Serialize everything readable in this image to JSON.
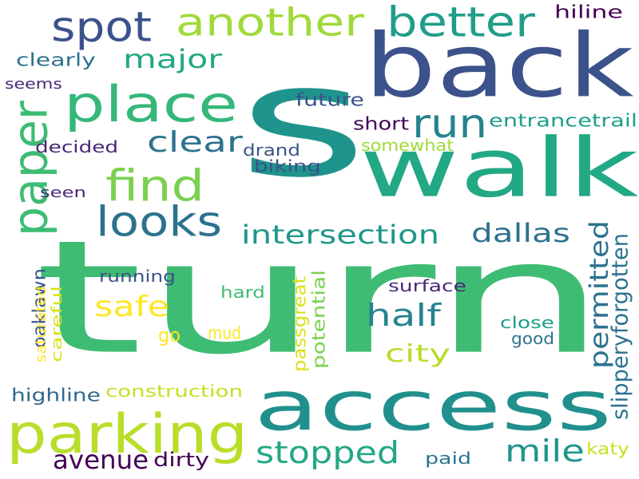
{
  "palette": {
    "dark_purple": "#440154",
    "indigo": "#3b528b",
    "blue": "#31688e",
    "teal": "#21918c",
    "sea": "#1f9e89",
    "green": "#3dbc74",
    "lime": "#a0da39",
    "yellow_green": "#c8e020",
    "yellow": "#fde725"
  },
  "words": [
    {
      "id": "s",
      "text": "s",
      "color": "#1f948c",
      "vertical": false
    },
    {
      "id": "turn",
      "text": "turn",
      "color": "#3fbc73",
      "vertical": false
    },
    {
      "id": "back",
      "text": "back",
      "color": "#3b528b",
      "vertical": false
    },
    {
      "id": "walk",
      "text": "walk",
      "color": "#22a884",
      "vertical": false
    },
    {
      "id": "access",
      "text": "access",
      "color": "#21908d",
      "vertical": false
    },
    {
      "id": "parking",
      "text": "parking",
      "color": "#b8de29",
      "vertical": false
    },
    {
      "id": "place",
      "text": "place",
      "color": "#35b779",
      "vertical": false
    },
    {
      "id": "spot",
      "text": "spot",
      "color": "#3b528b",
      "vertical": false
    },
    {
      "id": "another",
      "text": "another",
      "color": "#a0da39",
      "vertical": false
    },
    {
      "id": "better",
      "text": "better",
      "color": "#1f9e89",
      "vertical": false
    },
    {
      "id": "paper",
      "text": "paper",
      "color": "#3dbc74",
      "vertical": true
    },
    {
      "id": "find",
      "text": "find",
      "color": "#7ad151",
      "vertical": false
    },
    {
      "id": "looks",
      "text": "looks",
      "color": "#2c728e",
      "vertical": false
    },
    {
      "id": "run",
      "text": "run",
      "color": "#25838e",
      "vertical": false
    },
    {
      "id": "major",
      "text": "major",
      "color": "#22a884",
      "vertical": false
    },
    {
      "id": "clear",
      "text": "clear",
      "color": "#2c728e",
      "vertical": false
    },
    {
      "id": "half",
      "text": "half",
      "color": "#25838e",
      "vertical": false
    },
    {
      "id": "safe",
      "text": "safe",
      "color": "#fde725",
      "vertical": false
    },
    {
      "id": "intersection",
      "text": "intersection",
      "color": "#1f968b",
      "vertical": false
    },
    {
      "id": "dallas",
      "text": "dallas",
      "color": "#2c728e",
      "vertical": false
    },
    {
      "id": "permitted",
      "text": "permitted",
      "color": "#2c728e",
      "vertical": true
    },
    {
      "id": "stopped",
      "text": "stopped",
      "color": "#22a884",
      "vertical": false
    },
    {
      "id": "mile",
      "text": "mile",
      "color": "#1f968b",
      "vertical": false
    },
    {
      "id": "city",
      "text": "city",
      "color": "#b8de29",
      "vertical": false
    },
    {
      "id": "avenue",
      "text": "avenue",
      "color": "#440154",
      "vertical": false
    },
    {
      "id": "oaklawn",
      "text": "oaklawn",
      "color": "#3b528b",
      "vertical": true
    },
    {
      "id": "slipperyforgotten",
      "text": "slipperyforgotten",
      "color": "#2c728e",
      "vertical": true
    },
    {
      "id": "hiline",
      "text": "hiline",
      "color": "#440154",
      "vertical": false
    },
    {
      "id": "clearly",
      "text": "clearly",
      "color": "#2c728e",
      "vertical": false
    },
    {
      "id": "seems",
      "text": "seems",
      "color": "#482878",
      "vertical": false
    },
    {
      "id": "future",
      "text": "future",
      "color": "#3b528b",
      "vertical": false
    },
    {
      "id": "short",
      "text": "short",
      "color": "#440154",
      "vertical": false
    },
    {
      "id": "entrancetrail",
      "text": "entrancetrail",
      "color": "#1f9e89",
      "vertical": false
    },
    {
      "id": "decided",
      "text": "decided",
      "color": "#482878",
      "vertical": false
    },
    {
      "id": "drand",
      "text": "drand",
      "color": "#3b528b",
      "vertical": false
    },
    {
      "id": "somewhat",
      "text": "somewhat",
      "color": "#a0da39",
      "vertical": false
    },
    {
      "id": "biking",
      "text": "biking",
      "color": "#3b528b",
      "vertical": false
    },
    {
      "id": "seen",
      "text": "seen",
      "color": "#482878",
      "vertical": false
    },
    {
      "id": "running",
      "text": "running",
      "color": "#3b528b",
      "vertical": false
    },
    {
      "id": "hard",
      "text": "hard",
      "color": "#3dbc74",
      "vertical": false
    },
    {
      "id": "surface",
      "text": "surface",
      "color": "#482878",
      "vertical": false
    },
    {
      "id": "saturated",
      "text": "saturated",
      "color": "#fde725",
      "vertical": true
    },
    {
      "id": "careful",
      "text": "careful",
      "color": "#d8e219",
      "vertical": true
    },
    {
      "id": "passgreat",
      "text": "passgreat",
      "color": "#d8e219",
      "vertical": true
    },
    {
      "id": "potential",
      "text": "potential",
      "color": "#7ad151",
      "vertical": true
    },
    {
      "id": "go",
      "text": "go",
      "color": "#fde725",
      "vertical": false
    },
    {
      "id": "mud",
      "text": "mud",
      "color": "#fde725",
      "vertical": false
    },
    {
      "id": "close",
      "text": "close",
      "color": "#1f9e89",
      "vertical": false
    },
    {
      "id": "good",
      "text": "good",
      "color": "#2c728e",
      "vertical": false
    },
    {
      "id": "highline",
      "text": "highline",
      "color": "#31688e",
      "vertical": false
    },
    {
      "id": "construction",
      "text": "construction",
      "color": "#c8e020",
      "vertical": false
    },
    {
      "id": "dirty",
      "text": "dirty",
      "color": "#440154",
      "vertical": false
    },
    {
      "id": "paid",
      "text": "paid",
      "color": "#2c728e",
      "vertical": false
    },
    {
      "id": "katy",
      "text": "katy",
      "color": "#c8e020",
      "vertical": false
    }
  ]
}
